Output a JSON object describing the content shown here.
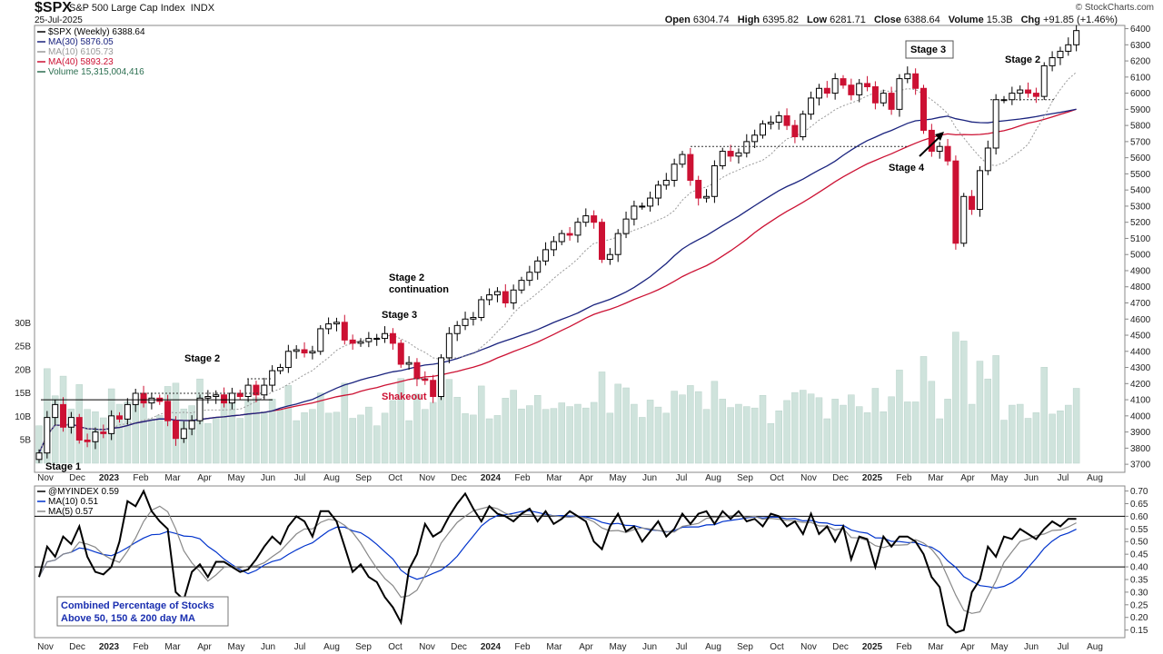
{
  "header": {
    "symbol": "$SPX",
    "description": "S&P 500 Large Cap Index",
    "exchange": "INDX",
    "date": "25-Jul-2025",
    "brand": "© StockCharts.com",
    "ohlc": [
      {
        "label": "Open",
        "value": "6304.74"
      },
      {
        "label": "High",
        "value": "6395.82"
      },
      {
        "label": "Low",
        "value": "6281.71"
      },
      {
        "label": "Close",
        "value": "6388.64"
      },
      {
        "label": "Volume",
        "value": "15.3B"
      },
      {
        "label": "Chg",
        "value": "+91.85 (+1.46%)"
      }
    ]
  },
  "colors": {
    "up": "#000000",
    "down": "#cc1133",
    "volume": "#cfe3dc",
    "ma30": "#1a237e",
    "ma10": "#999999",
    "ma40": "#cc1133",
    "breadth": "#000000",
    "breadth_ma10": "#0033cc",
    "breadth_ma5": "#888888"
  },
  "chart_data": [
    {
      "type": "line",
      "title": "$SPX (Weekly)",
      "legend": [
        {
          "label": "$SPX (Weekly)",
          "value": "6388.64"
        },
        {
          "label": "MA(30)",
          "value": "5876.05"
        },
        {
          "label": "MA(10)",
          "value": "6105.73"
        },
        {
          "label": "MA(40)",
          "value": "5893.23"
        },
        {
          "label": "Volume",
          "value": "15,315,004,416"
        }
      ],
      "y_ticks": [
        3700,
        3800,
        3900,
        4000,
        4100,
        4200,
        4300,
        4400,
        4500,
        4600,
        4700,
        4800,
        4900,
        5000,
        5100,
        5200,
        5300,
        5400,
        5500,
        5600,
        5700,
        5800,
        5900,
        6000,
        6100,
        6200,
        6300,
        6400
      ],
      "ylim": [
        3650,
        6420
      ],
      "volume_ticks": [
        "5B",
        "10B",
        "15B",
        "20B",
        "25B",
        "30B"
      ],
      "x_labels": [
        "Nov",
        "Dec",
        "2023",
        "Feb",
        "Mar",
        "Apr",
        "May",
        "Jun",
        "Jul",
        "Aug",
        "Sep",
        "Oct",
        "Nov",
        "Dec",
        "2024",
        "Feb",
        "Mar",
        "Apr",
        "May",
        "Jun",
        "Jul",
        "Aug",
        "Sep",
        "Oct",
        "Nov",
        "Dec",
        "2025",
        "Feb",
        "Mar",
        "Apr",
        "May",
        "Jun",
        "Jul",
        "Aug"
      ],
      "x_start": "2022-11-04",
      "close": [
        3770,
        3990,
        4070,
        3930,
        3990,
        3850,
        3840,
        3900,
        3890,
        4000,
        3980,
        4070,
        4140,
        4080,
        4110,
        4090,
        3970,
        3860,
        3920,
        3970,
        4110,
        4120,
        4130,
        4080,
        4140,
        4120,
        4190,
        4130,
        4190,
        4280,
        4300,
        4400,
        4410,
        4390,
        4400,
        4540,
        4570,
        4580,
        4470,
        4450,
        4460,
        4480,
        4480,
        4510,
        4450,
        4320,
        4330,
        4230,
        4220,
        4120,
        4360,
        4510,
        4560,
        4600,
        4610,
        4720,
        4750,
        4770,
        4700,
        4780,
        4840,
        4890,
        4960,
        5030,
        5080,
        5130,
        5120,
        5200,
        5240,
        5200,
        4970,
        5000,
        5130,
        5220,
        5300,
        5300,
        5350,
        5430,
        5460,
        5560,
        5620,
        5460,
        5350,
        5360,
        5550,
        5640,
        5610,
        5630,
        5700,
        5740,
        5810,
        5820,
        5860,
        5800,
        5730,
        5870,
        5970,
        6030,
        6000,
        6090,
        6050,
        5990,
        6060,
        6040,
        5940,
        6000,
        5900,
        6090,
        6120,
        6030,
        5770,
        5640,
        5670,
        5580,
        5070,
        5360,
        5280,
        5520,
        5660,
        5960,
        5960,
        6000,
        6020,
        6000,
        5980,
        6170,
        6220,
        6260,
        6300,
        6388
      ],
      "breadth": {
        "name": "@MYINDEX",
        "value": "0.59",
        "ma10_value": "0.51",
        "ma5_value": "0.57",
        "y_ticks": [
          0.15,
          0.2,
          0.25,
          0.3,
          0.35,
          0.4,
          0.45,
          0.5,
          0.55,
          0.6,
          0.65,
          0.7
        ],
        "ylim": [
          0.12,
          0.72
        ],
        "ref_lines": [
          0.4,
          0.6
        ],
        "values": [
          0.36,
          0.48,
          0.44,
          0.52,
          0.49,
          0.56,
          0.44,
          0.38,
          0.37,
          0.4,
          0.5,
          0.66,
          0.64,
          0.7,
          0.62,
          0.58,
          0.55,
          0.3,
          0.27,
          0.38,
          0.41,
          0.36,
          0.42,
          0.42,
          0.4,
          0.38,
          0.39,
          0.43,
          0.48,
          0.52,
          0.49,
          0.56,
          0.6,
          0.58,
          0.52,
          0.62,
          0.62,
          0.58,
          0.48,
          0.38,
          0.41,
          0.36,
          0.34,
          0.28,
          0.24,
          0.18,
          0.39,
          0.45,
          0.57,
          0.52,
          0.54,
          0.6,
          0.65,
          0.69,
          0.63,
          0.58,
          0.64,
          0.61,
          0.6,
          0.58,
          0.61,
          0.63,
          0.58,
          0.62,
          0.57,
          0.59,
          0.62,
          0.6,
          0.58,
          0.5,
          0.47,
          0.56,
          0.61,
          0.54,
          0.56,
          0.5,
          0.54,
          0.58,
          0.52,
          0.55,
          0.61,
          0.57,
          0.61,
          0.62,
          0.57,
          0.62,
          0.59,
          0.62,
          0.58,
          0.59,
          0.56,
          0.61,
          0.6,
          0.56,
          0.58,
          0.53,
          0.61,
          0.53,
          0.56,
          0.5,
          0.56,
          0.43,
          0.52,
          0.51,
          0.4,
          0.52,
          0.48,
          0.52,
          0.52,
          0.5,
          0.45,
          0.36,
          0.32,
          0.17,
          0.14,
          0.15,
          0.3,
          0.35,
          0.48,
          0.44,
          0.52,
          0.51,
          0.55,
          0.53,
          0.51,
          0.55,
          0.58,
          0.56,
          0.59,
          0.59
        ]
      },
      "annotations": [
        "Stage 1",
        "Stage 2",
        "Stage 2 continuation",
        "Stage 3",
        "Shakeout",
        "Stage 4",
        "Stage 3",
        "Stage 2",
        "Combined Percentage of Stocks Above 50, 150 & 200 day MA"
      ]
    }
  ]
}
